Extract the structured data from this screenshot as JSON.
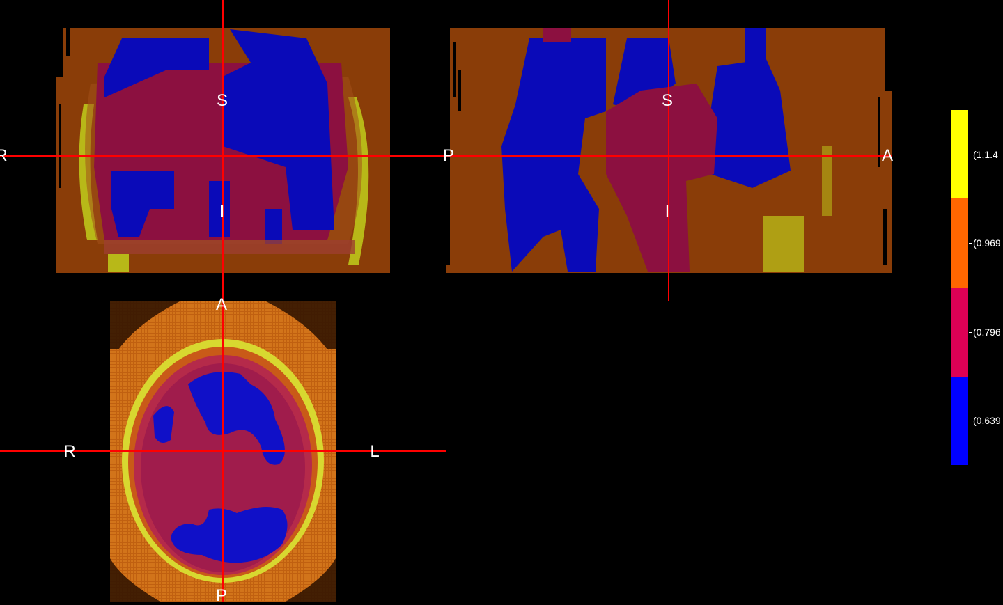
{
  "viewer": {
    "views": [
      {
        "id": "coronal",
        "labels": {
          "top": "S",
          "bottom": "I",
          "left": "R"
        }
      },
      {
        "id": "sagittal",
        "labels": {
          "top": "S",
          "bottom": "I",
          "left": "P",
          "right": "A"
        }
      },
      {
        "id": "axial",
        "labels": {
          "top": "A",
          "bottom": "P",
          "left": "R",
          "right": "L"
        }
      }
    ],
    "crosshair_color": "#ff0000"
  },
  "colorbar": {
    "bins": [
      {
        "label": "(1,1.4",
        "color": "#ffff00"
      },
      {
        "label": "(0.969",
        "color": "#ff6600"
      },
      {
        "label": "(0.796",
        "color": "#dd0055"
      },
      {
        "label": "(0.639",
        "color": "#0000ff"
      }
    ]
  },
  "colors": {
    "background": "#000000",
    "brown": "#8a3d08",
    "dark_blue": "#0a0ab8",
    "maroon": "#8c1040",
    "olive_yellow": "#b8b818"
  }
}
